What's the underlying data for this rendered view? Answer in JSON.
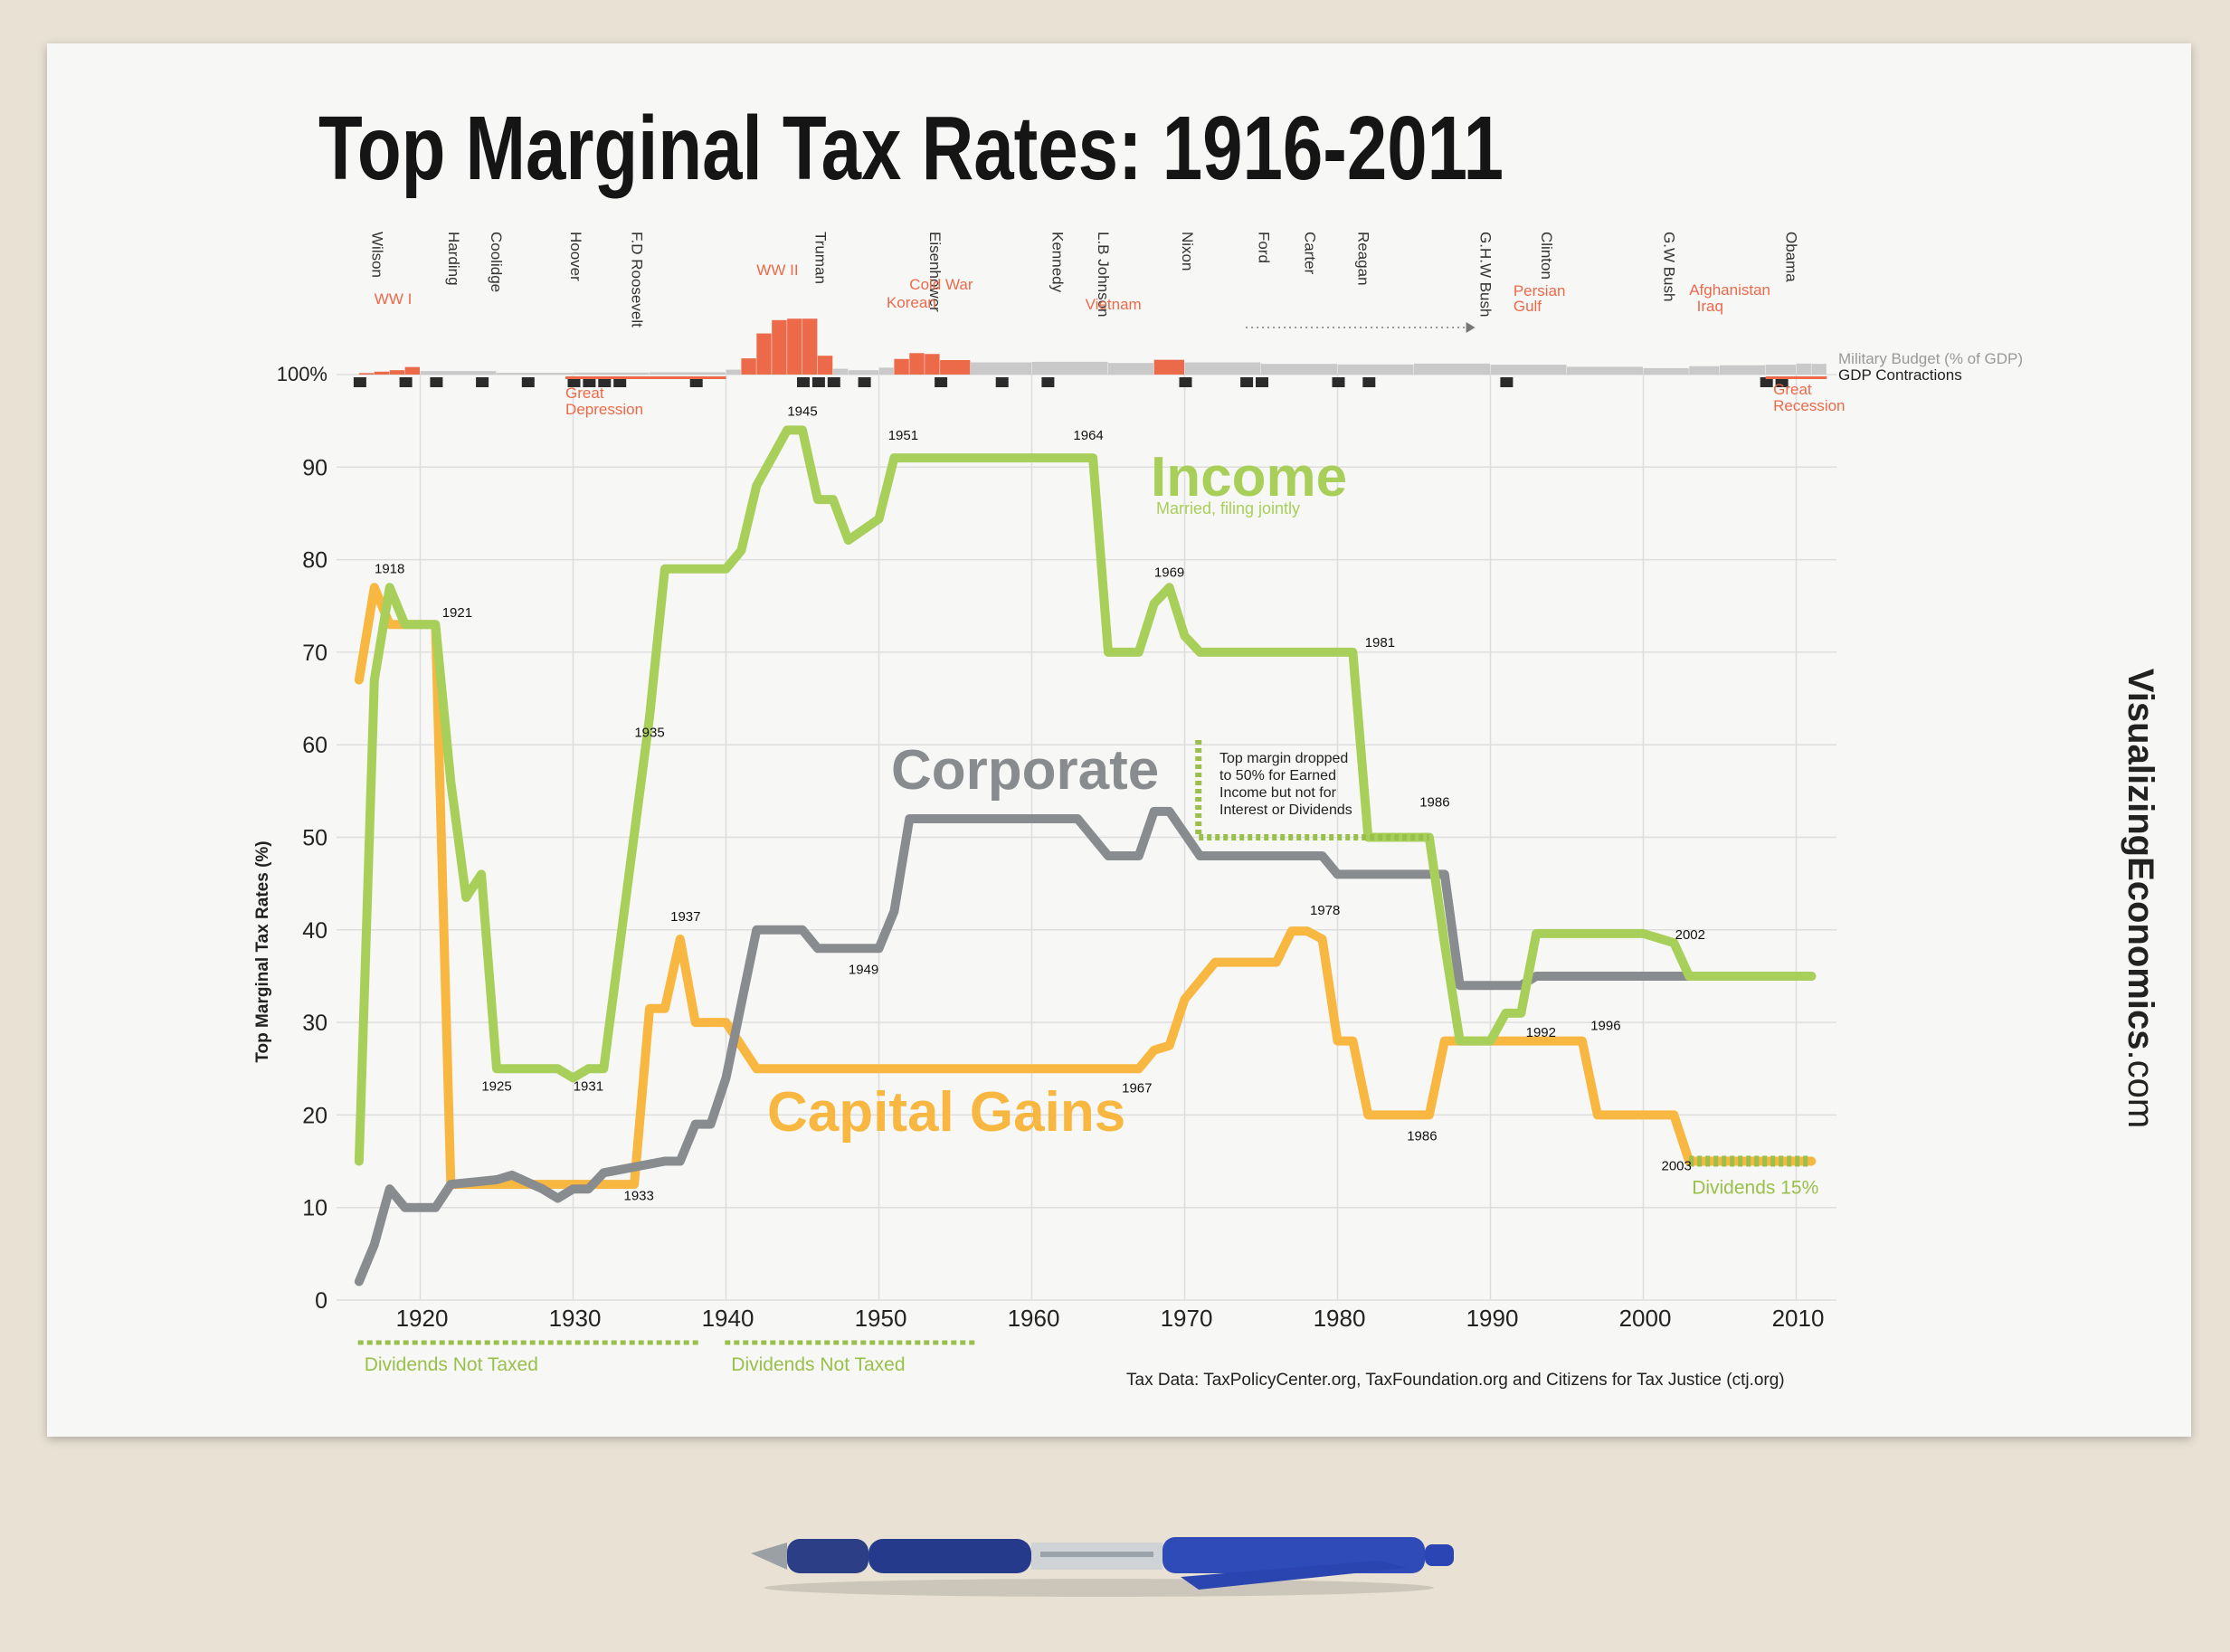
{
  "title": "Top Marginal Tax Rates: 1916-2011",
  "brand": {
    "bold": "VisualizingEconomics",
    "suffix": ".com"
  },
  "source": "Tax Data:  TaxPolicyCenter.org, TaxFoundation.org and Citizens for Tax Justice (ctj.org)",
  "colors": {
    "income": "#a8cf5a",
    "capgains": "#f8b740",
    "corporate": "#898c8e",
    "military": "#ec6a4a",
    "gdp": "#2b2b2b",
    "dividends": "#99c04a",
    "grid": "#dedede"
  },
  "presidents": [
    {
      "name": "Wilson",
      "year": 1916.5
    },
    {
      "name": "Harding",
      "year": 1921.5
    },
    {
      "name": "Coolidge",
      "year": 1924.3
    },
    {
      "name": "Hoover",
      "year": 1929.5
    },
    {
      "name": "F.D Roosevelt",
      "year": 1933.5
    },
    {
      "name": "Truman",
      "year": 1945.5
    },
    {
      "name": "Eisenhower",
      "year": 1953
    },
    {
      "name": "Kennedy",
      "year": 1961
    },
    {
      "name": "L.B Johnson",
      "year": 1964
    },
    {
      "name": "Nixon",
      "year": 1969.5
    },
    {
      "name": "Ford",
      "year": 1974.5
    },
    {
      "name": "Carter",
      "year": 1977.5
    },
    {
      "name": "Reagan",
      "year": 1981
    },
    {
      "name": "G.H.W Bush",
      "year": 1989
    },
    {
      "name": "Clinton",
      "year": 1993
    },
    {
      "name": "G.W Bush",
      "year": 2001
    },
    {
      "name": "Obama",
      "year": 2009
    }
  ],
  "events": {
    "above": [
      {
        "text": "WW I",
        "year": 1917
      },
      {
        "text": "WW II",
        "year": 1942
      },
      {
        "text": "Cold War",
        "year": 1952
      },
      {
        "text": "Korean",
        "year": 1950.5
      },
      {
        "text": "Vietnam",
        "year": 1963.5
      },
      {
        "text": "Persian",
        "year": 1991.5
      },
      {
        "text": "Gulf",
        "year": 1991.5
      },
      {
        "text": "Afghanistan",
        "year": 2003
      },
      {
        "text": "Iraq",
        "year": 2003.5
      }
    ],
    "below": [
      {
        "text": "Great",
        "year": 1929.5
      },
      {
        "text": "Depression",
        "year": 1929.5
      },
      {
        "text": "Great",
        "year": 2008.5
      },
      {
        "text": "Recession",
        "year": 2008.5
      }
    ]
  },
  "military_budget": {
    "label": "Military Budget (% of GDP)",
    "years": [
      1916,
      1917,
      1918,
      1919,
      1920,
      1925,
      1930,
      1935,
      1940,
      1941,
      1942,
      1943,
      1944,
      1945,
      1946,
      1947,
      1948,
      1950,
      1951,
      1952,
      1953,
      1954,
      1956,
      1960,
      1965,
      1968,
      1970,
      1975,
      1980,
      1985,
      1990,
      1995,
      2000,
      2003,
      2005,
      2008,
      2010,
      2011
    ],
    "values": [
      0.5,
      1,
      1.5,
      2.6,
      1.2,
      0.6,
      0.7,
      0.8,
      1.7,
      5.6,
      14.2,
      18.8,
      19.3,
      19.3,
      6.5,
      2,
      1.5,
      2.4,
      5.4,
      7.4,
      7.1,
      5,
      4.2,
      4.4,
      4,
      5.1,
      4.2,
      3.7,
      3.5,
      3.8,
      3.4,
      2.7,
      2.2,
      2.9,
      3.2,
      3.4,
      3.8,
      3.7
    ]
  },
  "gdp_contractions": {
    "label": "GDP Contractions",
    "years": [
      1916,
      1919,
      1921,
      1924,
      1927,
      1930,
      1931,
      1932,
      1933,
      1938,
      1945,
      1946,
      1947,
      1949,
      1954,
      1958,
      1961,
      1970,
      1974,
      1975,
      1980,
      1982,
      1991,
      2008,
      2009
    ]
  },
  "y_axis_label": "Top Marginal Tax Rates (%)",
  "y_axis_top_label": "100%",
  "chart_data": {
    "type": "line",
    "title": "Top Marginal Tax Rates: 1916-2011",
    "xlabel": "",
    "ylabel": "Top Marginal Tax Rates (%)",
    "xlim": [
      1915,
      2012
    ],
    "ylim": [
      0,
      100
    ],
    "x_ticks": [
      1920,
      1930,
      1940,
      1950,
      1960,
      1970,
      1980,
      1990,
      2000,
      2010
    ],
    "y_ticks": [
      0,
      10,
      20,
      30,
      40,
      50,
      60,
      70,
      80,
      90
    ],
    "series": [
      {
        "name": "Income",
        "sublabel": "Married, filing jointly",
        "x": [
          1916,
          1917,
          1918,
          1919,
          1921,
          1922,
          1923,
          1924,
          1925,
          1929,
          1930,
          1931,
          1932,
          1935,
          1936,
          1940,
          1941,
          1942,
          1944,
          1945,
          1946,
          1947,
          1948,
          1950,
          1951,
          1964,
          1965,
          1967,
          1968,
          1969,
          1970,
          1971,
          1981,
          1982,
          1986,
          1987,
          1988,
          1990,
          1991,
          1992,
          1993,
          1999,
          2000,
          2001,
          2002,
          2003,
          2011
        ],
        "values": [
          15,
          67,
          77,
          73,
          73,
          56,
          43.5,
          46,
          25,
          25,
          24,
          25,
          25,
          63,
          79,
          79,
          81,
          88,
          94,
          94,
          86.5,
          86.5,
          82.1,
          84.4,
          91,
          91,
          70,
          70,
          75.25,
          77,
          71.75,
          70,
          70,
          50,
          50,
          38.5,
          28,
          28,
          31,
          31,
          39.6,
          39.6,
          39.6,
          39.1,
          38.6,
          35,
          35
        ]
      },
      {
        "name": "Corporate",
        "x": [
          1916,
          1917,
          1918,
          1919,
          1921,
          1922,
          1925,
          1926,
          1928,
          1929,
          1930,
          1931,
          1932,
          1936,
          1937,
          1938,
          1939,
          1940,
          1942,
          1945,
          1946,
          1950,
          1951,
          1952,
          1963,
          1965,
          1967,
          1968,
          1969,
          1971,
          1979,
          1980,
          1987,
          1988,
          1991,
          1992,
          1993,
          2011
        ],
        "values": [
          2,
          6,
          12,
          10,
          10,
          12.5,
          13,
          13.5,
          12,
          11,
          12,
          12,
          13.75,
          15,
          15,
          19,
          19,
          24,
          40,
          40,
          38,
          38,
          42,
          52,
          52,
          48,
          48,
          52.8,
          52.8,
          48,
          48,
          46,
          46,
          34,
          34,
          34,
          35,
          35
        ]
      },
      {
        "name": "Capital Gains",
        "x": [
          1916,
          1917,
          1918,
          1921,
          1922,
          1934,
          1935,
          1936,
          1937,
          1938,
          1940,
          1942,
          1967,
          1968,
          1969,
          1970,
          1972,
          1976,
          1977,
          1978,
          1979,
          1980,
          1981,
          1982,
          1986,
          1987,
          1988,
          1996,
          1997,
          2002,
          2003,
          2011
        ],
        "values": [
          67,
          77,
          73,
          73,
          12.5,
          12.5,
          31.5,
          31.5,
          39,
          30,
          30,
          25,
          25,
          27,
          27.5,
          32.5,
          36.5,
          36.5,
          39.875,
          39.875,
          39,
          28,
          28,
          20,
          20,
          28,
          28,
          28,
          20,
          20,
          15,
          15
        ]
      }
    ],
    "annotations": [
      {
        "text": "1918",
        "x": 1918,
        "y": 77
      },
      {
        "text": "1921",
        "x": 1921,
        "y": 73
      },
      {
        "text": "1925",
        "x": 1925,
        "y": 25
      },
      {
        "text": "1931",
        "x": 1931,
        "y": 25
      },
      {
        "text": "1935",
        "x": 1935,
        "y": 63
      },
      {
        "text": "1945",
        "x": 1945,
        "y": 94
      },
      {
        "text": "1951",
        "x": 1951,
        "y": 91
      },
      {
        "text": "1964",
        "x": 1964,
        "y": 91
      },
      {
        "text": "1969",
        "x": 1969,
        "y": 77
      },
      {
        "text": "1981",
        "x": 1981,
        "y": 70
      },
      {
        "text": "1986",
        "x": 1986,
        "y": 50
      },
      {
        "text": "2002",
        "x": 2002,
        "y": 38.6
      },
      {
        "text": "1937",
        "x": 1937,
        "y": 39
      },
      {
        "text": "1949",
        "x": 1949,
        "y": 38
      },
      {
        "text": "1933",
        "x": 1933,
        "y": 13.75
      },
      {
        "text": "1967",
        "x": 1967,
        "y": 25
      },
      {
        "text": "1978",
        "x": 1978,
        "y": 39.875
      },
      {
        "text": "1986",
        "x": 1986,
        "y": 20
      },
      {
        "text": "1992",
        "x": 1992,
        "y": 31
      },
      {
        "text": "1996",
        "x": 1996,
        "y": 28
      },
      {
        "text": "2003",
        "x": 2003,
        "y": 15
      }
    ],
    "series_labels": {
      "income": "Income",
      "income_sub": "Married, filing jointly",
      "corporate": "Corporate",
      "capgains": "Capital Gains"
    },
    "note": [
      "Top margin dropped",
      "to 50% for Earned",
      "Income but not for",
      "Interest or Dividends"
    ],
    "dividends_not_taxed": [
      {
        "text": "Dividends Not Taxed",
        "from": 1918,
        "to": 1936
      },
      {
        "text": "Dividends Not Taxed",
        "from": 1942,
        "to": 1954
      }
    ],
    "dividends_15": {
      "text": "Dividends 15%",
      "from": 2003,
      "to": 2011,
      "value": 15
    }
  }
}
